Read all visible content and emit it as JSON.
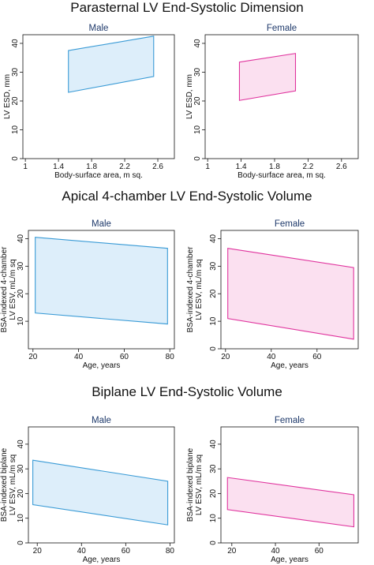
{
  "sections": [
    {
      "title": "Parasternal LV End-Systolic Dimension"
    },
    {
      "title": "Apical 4-chamber LV End-Systolic Volume"
    },
    {
      "title": "Biplane LV End-Systolic Volume"
    }
  ],
  "colors": {
    "male_stroke": "#3a9bd6",
    "male_fill": "#ddeefa",
    "female_stroke": "#e0349e",
    "female_fill": "#fbe0f0",
    "panel_title": "#1f3a6b",
    "axis": "#111111"
  },
  "chart_data": [
    {
      "type": "area",
      "title": "Male",
      "xlabel": "Body-surface area, m sq.",
      "ylabel_lines": [
        "LV ESD, mm"
      ],
      "xlim": [
        0.97,
        2.8
      ],
      "ylim": [
        0,
        43
      ],
      "xticks": [
        1,
        1.4,
        1.8,
        2.2,
        2.6
      ],
      "xticklabels": [
        "1",
        "1.4",
        "1.8",
        "2.2",
        "2.6"
      ],
      "yticks": [
        0,
        10,
        20,
        30,
        40
      ],
      "yticklabels": [
        "0",
        "10",
        "20",
        "30",
        "40"
      ],
      "series": [
        {
          "x": [
            1.52,
            2.55
          ],
          "lower": [
            23,
            28.5
          ],
          "upper": [
            37.5,
            42.5
          ]
        }
      ]
    },
    {
      "type": "area",
      "title": "Female",
      "xlabel": "Body-surface area, m sq.",
      "ylabel_lines": [
        "LV ESD, mm"
      ],
      "xlim": [
        0.97,
        2.8
      ],
      "ylim": [
        0,
        43
      ],
      "xticks": [
        1,
        1.4,
        1.8,
        2.2,
        2.6
      ],
      "xticklabels": [
        "1",
        "1.4",
        "1.8",
        "2.2",
        "2.6"
      ],
      "yticks": [
        0,
        10,
        20,
        30,
        40
      ],
      "yticklabels": [
        "0",
        "10",
        "20",
        "30",
        "40"
      ],
      "series": [
        {
          "x": [
            1.38,
            2.05
          ],
          "lower": [
            20.2,
            23.5
          ],
          "upper": [
            33.5,
            36.5
          ]
        }
      ]
    },
    {
      "type": "area",
      "title": "Male",
      "xlabel": "Age, years",
      "ylabel_lines": [
        "BSA-indexed 4-chamber",
        "LV ESV, mL/m sq"
      ],
      "xlim": [
        18,
        82
      ],
      "ylim": [
        0,
        43
      ],
      "xticks": [
        20,
        40,
        60,
        80
      ],
      "xticklabels": [
        "20",
        "40",
        "60",
        "80"
      ],
      "yticks": [
        10,
        20,
        30,
        40
      ],
      "yticklabels": [
        "10",
        "20",
        "30",
        "40"
      ],
      "series": [
        {
          "x": [
            21,
            79
          ],
          "lower": [
            13,
            9
          ],
          "upper": [
            40.5,
            36.5
          ]
        }
      ]
    },
    {
      "type": "area",
      "title": "Female",
      "xlabel": "Age, years",
      "ylabel_lines": [
        "BSA-indexed 4-chamber",
        "LV ESV, mL/m sq"
      ],
      "xlim": [
        18,
        78
      ],
      "ylim": [
        0,
        43
      ],
      "xticks": [
        20,
        40,
        60
      ],
      "xticklabels": [
        "20",
        "40",
        "60"
      ],
      "yticks": [
        0,
        10,
        20,
        30,
        40
      ],
      "yticklabels": [
        "0",
        "10",
        "20",
        "30",
        "40"
      ],
      "series": [
        {
          "x": [
            21,
            76
          ],
          "lower": [
            11,
            3.5
          ],
          "upper": [
            36.5,
            29.5
          ]
        }
      ]
    },
    {
      "type": "area",
      "title": "Male",
      "xlabel": "Age, years",
      "ylabel_lines": [
        "BSA-indexed biplane",
        "LV ESV, mL/m sq"
      ],
      "xlim": [
        16,
        82
      ],
      "ylim": [
        0,
        47
      ],
      "xticks": [
        20,
        40,
        60,
        80
      ],
      "xticklabels": [
        "20",
        "40",
        "60",
        "80"
      ],
      "yticks": [
        0,
        10,
        20,
        30,
        40
      ],
      "yticklabels": [
        "0",
        "10",
        "20",
        "30",
        "40"
      ],
      "series": [
        {
          "x": [
            18,
            79
          ],
          "lower": [
            15.5,
            7.3
          ],
          "upper": [
            33.5,
            25
          ]
        }
      ]
    },
    {
      "type": "area",
      "title": "Female",
      "xlabel": "Age, years",
      "ylabel_lines": [
        "BSA-indexed biplane",
        "LV ESV, mL/m sq"
      ],
      "xlim": [
        15,
        78
      ],
      "ylim": [
        0,
        47
      ],
      "xticks": [
        20,
        40,
        60
      ],
      "xticklabels": [
        "20",
        "40",
        "60"
      ],
      "yticks": [
        0,
        10,
        20,
        30,
        40
      ],
      "yticklabels": [
        "0",
        "10",
        "20",
        "30",
        "40"
      ],
      "series": [
        {
          "x": [
            18,
            76
          ],
          "lower": [
            13.5,
            6.5
          ],
          "upper": [
            26.5,
            19.5
          ]
        }
      ]
    }
  ]
}
